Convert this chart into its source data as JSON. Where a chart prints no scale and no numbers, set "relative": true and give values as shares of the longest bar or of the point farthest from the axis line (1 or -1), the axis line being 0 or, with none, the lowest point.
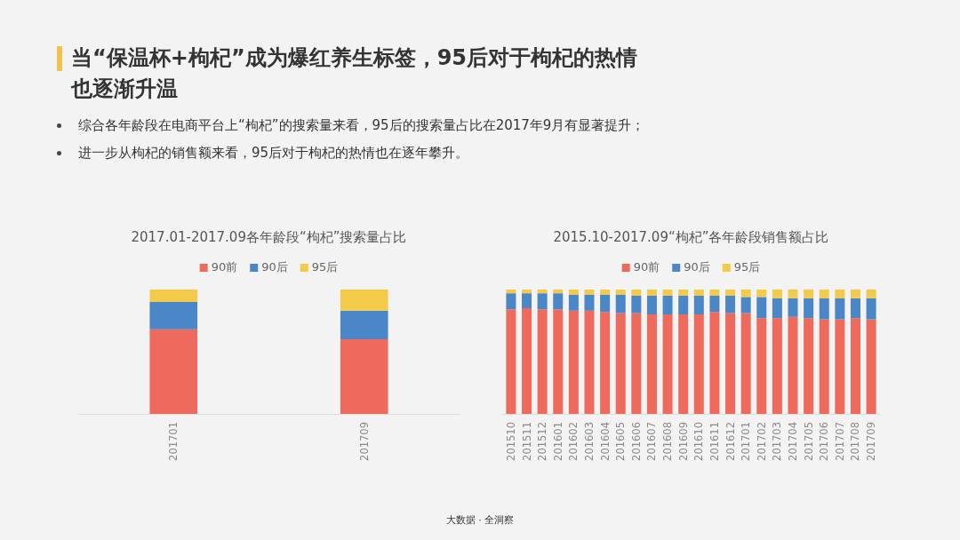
{
  "chart_data": [
    {
      "type": "other",
      "title": "当“保温杯+枸杞”成为爆红养生标签，95后对于枸杞的热情也逐渐升温",
      "annotations": [
        "综合各年龄段在电商平台上“枸杞”的搜索量来看，95后的搜索量占比在2017年9月有显著提升；",
        "进一步从枸杞的销售额来看，95后对于枸杞的热情也在逐年攀升。",
        "大数据 · 全洞察"
      ]
    },
    {
      "type": "bar",
      "title": "2017.01-2017.09各年龄段“枸杞”搜索量占比",
      "categories": [
        "201701",
        "201709"
      ],
      "stacked": true,
      "relative": true,
      "legend": "top",
      "series": [
        {
          "name": "90前",
          "color": "#ee6a5d",
          "values": [
            0.68,
            0.6
          ]
        },
        {
          "name": "90后",
          "color": "#4b87c6",
          "values": [
            0.22,
            0.23
          ]
        },
        {
          "name": "95后",
          "color": "#f3ca4a",
          "values": [
            0.1,
            0.17
          ]
        }
      ]
    },
    {
      "type": "bar",
      "title": "2015.10-2017.09“枸杞”各年龄段销售额占比",
      "categories": [
        "201510",
        "201511",
        "201512",
        "201601",
        "201602",
        "201603",
        "201604",
        "201605",
        "201606",
        "201607",
        "201608",
        "201609",
        "201610",
        "201611",
        "201612",
        "201701",
        "201702",
        "201703",
        "201704",
        "201705",
        "201706",
        "201707",
        "201708",
        "201709"
      ],
      "stacked": true,
      "relative": true,
      "legend": "top",
      "series": [
        {
          "name": "90前",
          "color": "#ee6a5d",
          "values": [
            0.84,
            0.85,
            0.84,
            0.84,
            0.83,
            0.83,
            0.82,
            0.81,
            0.81,
            0.8,
            0.8,
            0.8,
            0.8,
            0.82,
            0.81,
            0.81,
            0.77,
            0.77,
            0.78,
            0.77,
            0.76,
            0.76,
            0.77,
            0.76
          ]
        },
        {
          "name": "90后",
          "color": "#4b87c6",
          "values": [
            0.13,
            0.12,
            0.13,
            0.13,
            0.13,
            0.13,
            0.14,
            0.15,
            0.14,
            0.15,
            0.15,
            0.15,
            0.15,
            0.13,
            0.14,
            0.13,
            0.17,
            0.16,
            0.15,
            0.16,
            0.17,
            0.17,
            0.16,
            0.17
          ]
        },
        {
          "name": "95后",
          "color": "#f3ca4a",
          "values": [
            0.03,
            0.03,
            0.03,
            0.03,
            0.04,
            0.04,
            0.04,
            0.04,
            0.05,
            0.05,
            0.05,
            0.05,
            0.05,
            0.05,
            0.05,
            0.06,
            0.06,
            0.07,
            0.07,
            0.07,
            0.07,
            0.07,
            0.07,
            0.07
          ]
        }
      ]
    }
  ]
}
